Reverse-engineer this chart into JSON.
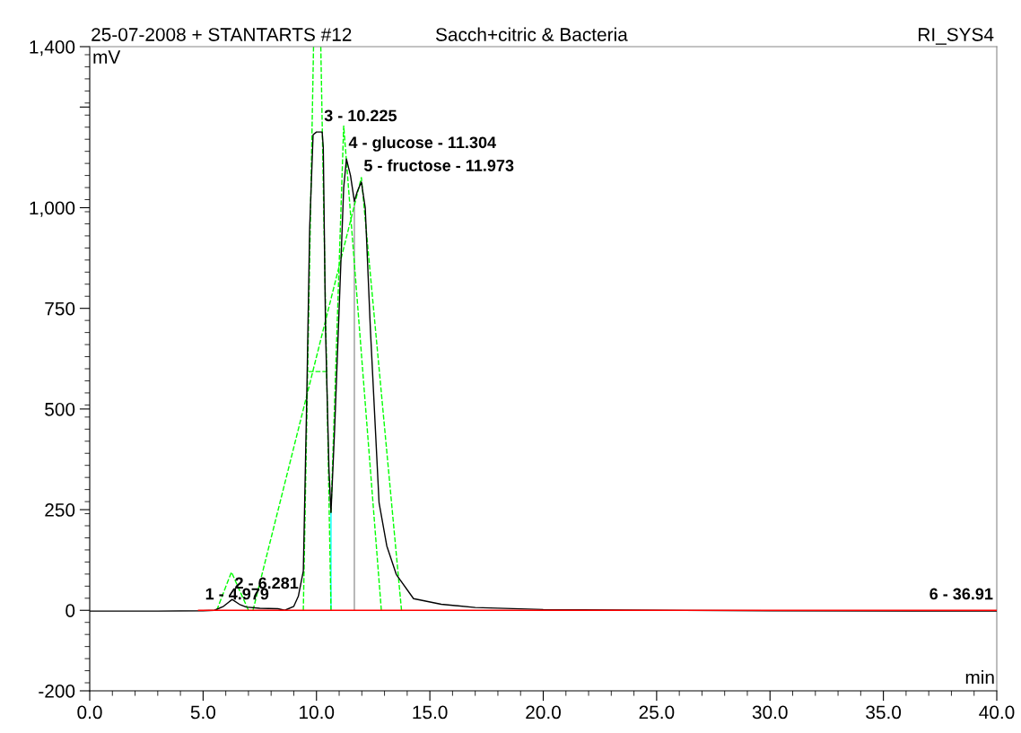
{
  "chart_data": {
    "type": "line",
    "title": "25-07-2008 + STANTARTS #12",
    "subtitle": "Sacch+citric & Bacteria",
    "xlabel": "min",
    "ylabel": "mV",
    "annotations": [
      "RI_SYS4",
      {
        "text": "1 - 4.979",
        "x": 4.979,
        "y": 0
      },
      {
        "text": "2 - 6.281",
        "x": 6.281,
        "y": 27
      },
      {
        "text": "3 - 10.225",
        "x": 10.225,
        "y": 1188
      },
      {
        "text": "4 - glucose - 11.304",
        "x": 11.304,
        "y": 1121
      },
      {
        "text": "5 - fructose - 11.973",
        "x": 11.973,
        "y": 1064
      },
      {
        "text": "6 - 36.91",
        "x": 36.91,
        "y": 0
      }
    ],
    "xlim": [
      0,
      40
    ],
    "ylim": [
      -200,
      1400
    ],
    "xticks": [
      {
        "value": 0,
        "label": "0.0"
      },
      {
        "value": 5,
        "label": "5.0"
      },
      {
        "value": 10,
        "label": "10.0"
      },
      {
        "value": 15,
        "label": "15.0"
      },
      {
        "value": 20,
        "label": "20.0"
      },
      {
        "value": 25,
        "label": "25.0"
      },
      {
        "value": 30,
        "label": "30.0"
      },
      {
        "value": 35,
        "label": "35.0"
      },
      {
        "value": 40,
        "label": "40.0"
      }
    ],
    "yticks": [
      -200,
      0,
      250,
      500,
      750,
      {
        "value": 1000,
        "label": "1,000"
      },
      {
        "value": 1250,
        "label": null
      },
      {
        "value": 1400,
        "label": "1,400"
      }
    ],
    "grid": false,
    "marker": "none",
    "series": [
      {
        "color": "#ff0000",
        "line_style": "solid",
        "x": [
          4.8,
          40
        ],
        "values": [
          0,
          0
        ]
      },
      {
        "color": "#00ff00",
        "line_style": "dashed",
        "x": [
          9.42,
          9.87
        ],
        "values": [
          0,
          1400
        ]
      },
      {
        "color": "#00ff00",
        "line_style": "dashed",
        "x": [
          10.19,
          10.64
        ],
        "values": [
          1400,
          0
        ]
      },
      {
        "color": "#00ff00",
        "line_style": "dashed",
        "x": [
          9.65,
          10.48
        ],
        "values": [
          593,
          593
        ]
      },
      {
        "color": "#00ff00",
        "line_style": "dashed",
        "x": [
          10.64,
          11.2,
          12.86
        ],
        "values": [
          243,
          1203,
          0
        ]
      },
      {
        "color": "#00ff00",
        "line_style": "dashed",
        "x": [
          7.2,
          11.98,
          13.75
        ],
        "values": [
          0,
          1075,
          0
        ]
      },
      {
        "color": "#00ff00",
        "line_style": "dashed",
        "x": [
          5.6,
          6.25,
          7.0
        ],
        "values": [
          0,
          95,
          0
        ]
      },
      {
        "color": "#00ffff",
        "line_style": "solid",
        "x": [
          10.64,
          10.64
        ],
        "values": [
          0,
          243
        ]
      },
      {
        "color": "#999999",
        "line_style": "solid",
        "x": [
          11.67,
          11.67
        ],
        "values": [
          0,
          1016
        ]
      },
      {
        "color": "#000000",
        "line_style": "solid",
        "x": [
          0,
          3,
          5.0,
          5.5,
          5.9,
          6.28,
          6.6,
          6.9,
          7.5,
          8.3,
          8.6,
          9.0,
          9.2,
          9.42,
          9.57,
          9.7,
          9.85,
          10.0,
          10.25,
          10.3,
          10.4,
          10.55,
          10.64,
          10.8,
          11.02,
          11.2,
          11.32,
          11.5,
          11.67,
          11.8,
          11.98,
          12.15,
          12.38,
          12.76,
          13.1,
          13.52,
          14.28,
          15.5,
          17,
          20,
          25,
          30,
          40
        ],
        "values": [
          -2,
          -2,
          -1,
          0,
          10,
          27,
          15,
          8,
          5,
          4,
          0,
          10,
          35,
          98,
          524,
          950,
          1181,
          1188,
          1188,
          1150,
          695,
          350,
          243,
          450,
          780,
          1050,
          1121,
          1080,
          1016,
          1040,
          1064,
          1000,
          695,
          267,
          160,
          89,
          29,
          15,
          7,
          2,
          0,
          -1,
          -2
        ]
      }
    ]
  }
}
